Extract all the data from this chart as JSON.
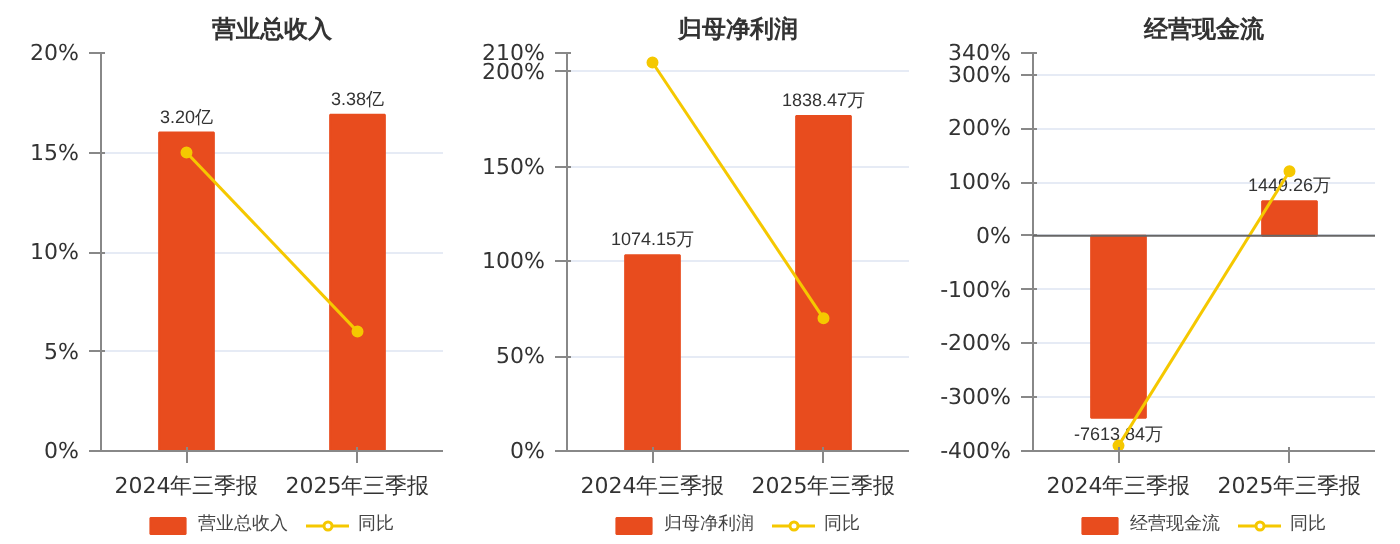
{
  "chart_data": [
    {
      "type": "bar",
      "title": "营业总收入",
      "categories": [
        "2024年三季报",
        "2025年三季报"
      ],
      "ylim": [
        0,
        20
      ],
      "yticks": [
        {
          "value": 0,
          "label": "0%"
        },
        {
          "value": 5,
          "label": "5%"
        },
        {
          "value": 10,
          "label": "10%"
        },
        {
          "value": 15,
          "label": "15%"
        },
        {
          "value": 20,
          "label": "20%"
        }
      ],
      "y2lim": [
        0,
        4
      ],
      "grid": "y",
      "legend": "bottom",
      "marker": "circle",
      "series": [
        {
          "name": "营业总收入",
          "axis": "y2",
          "color": "#e84c1e",
          "values": [
            3.2,
            3.38
          ],
          "value_labels": [
            "3.20亿",
            "3.38亿"
          ]
        },
        {
          "name": "同比",
          "type": "line",
          "color": "#f5c800",
          "values": [
            15,
            6
          ]
        }
      ]
    },
    {
      "type": "bar",
      "title": "归母净利润",
      "categories": [
        "2024年三季报",
        "2025年三季报"
      ],
      "ylim": [
        0,
        210
      ],
      "yticks": [
        {
          "value": 0,
          "label": "0%"
        },
        {
          "value": 50,
          "label": "50%"
        },
        {
          "value": 100,
          "label": "100%"
        },
        {
          "value": 150,
          "label": "150%"
        },
        {
          "value": 200,
          "label": "200%"
        },
        {
          "value": 210,
          "label": "210%"
        }
      ],
      "y2lim": [
        0,
        2185
      ],
      "grid": "y",
      "legend": "bottom",
      "marker": "circle",
      "series": [
        {
          "name": "归母净利润",
          "axis": "y2",
          "color": "#e84c1e",
          "values": [
            1074.15,
            1838.47
          ],
          "value_labels": [
            "1074.15万",
            "1838.47万"
          ]
        },
        {
          "name": "同比",
          "type": "line",
          "color": "#f5c800",
          "values": [
            205,
            70
          ]
        }
      ]
    },
    {
      "type": "bar",
      "title": "经营现金流",
      "categories": [
        "2024年三季报",
        "2025年三季报"
      ],
      "ylim": [
        -400,
        340
      ],
      "yticks": [
        {
          "value": -400,
          "label": "-400%"
        },
        {
          "value": -300,
          "label": "-300%"
        },
        {
          "value": -200,
          "label": "-200%"
        },
        {
          "value": -100,
          "label": "-100%"
        },
        {
          "value": 0,
          "label": "0%"
        },
        {
          "value": 100,
          "label": "100%"
        },
        {
          "value": 200,
          "label": "200%"
        },
        {
          "value": 300,
          "label": "300%"
        },
        {
          "value": 340,
          "label": "340%"
        }
      ],
      "y2lim": [
        -9000,
        7650
      ],
      "grid": "y",
      "legend": "bottom",
      "marker": "circle",
      "series": [
        {
          "name": "经营现金流",
          "axis": "y2",
          "color": "#e84c1e",
          "values": [
            -7613.84,
            1449.26
          ],
          "value_labels": [
            "-7613.84万",
            "1449.26万"
          ]
        },
        {
          "name": "同比",
          "type": "line",
          "color": "#f5c800",
          "values": [
            -390,
            120
          ]
        }
      ]
    }
  ]
}
